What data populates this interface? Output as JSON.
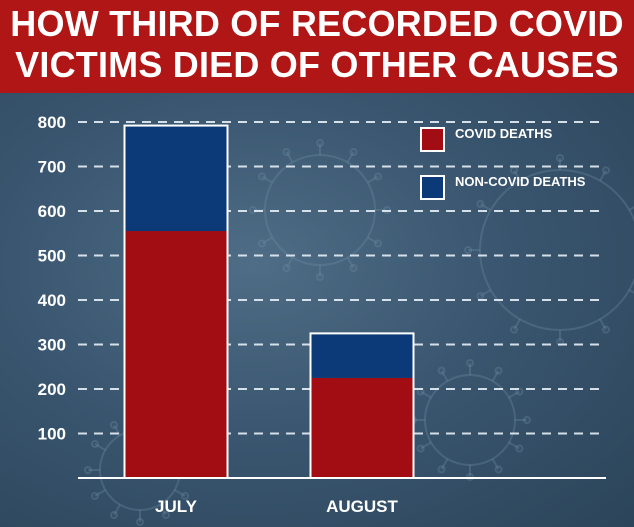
{
  "title_lines": [
    "HOW THIRD OF RECORDED COVID",
    "VICTIMS DIED OF OTHER CAUSES"
  ],
  "colors": {
    "title_band": "#b11616",
    "covid": "#a10d13",
    "non_covid": "#0c3a78",
    "background": "#3a5670"
  },
  "chart_data": {
    "type": "bar",
    "stacked": true,
    "categories": [
      "JULY",
      "AUGUST"
    ],
    "series": [
      {
        "name": "COVID DEATHS",
        "values": [
          555,
          225
        ],
        "color": "#a10d13"
      },
      {
        "name": "NON-COVID DEATHS",
        "values": [
          237,
          100
        ],
        "color": "#0c3a78"
      }
    ],
    "title": "HOW THIRD OF RECORDED COVID VICTIMS DIED OF OTHER CAUSES",
    "xlabel": "",
    "ylabel": "",
    "ylim": [
      0,
      800
    ],
    "yticks": [
      100,
      200,
      300,
      400,
      500,
      600,
      700,
      800
    ],
    "grid": true,
    "grid_style": "dashed",
    "legend_position": "top-right"
  }
}
